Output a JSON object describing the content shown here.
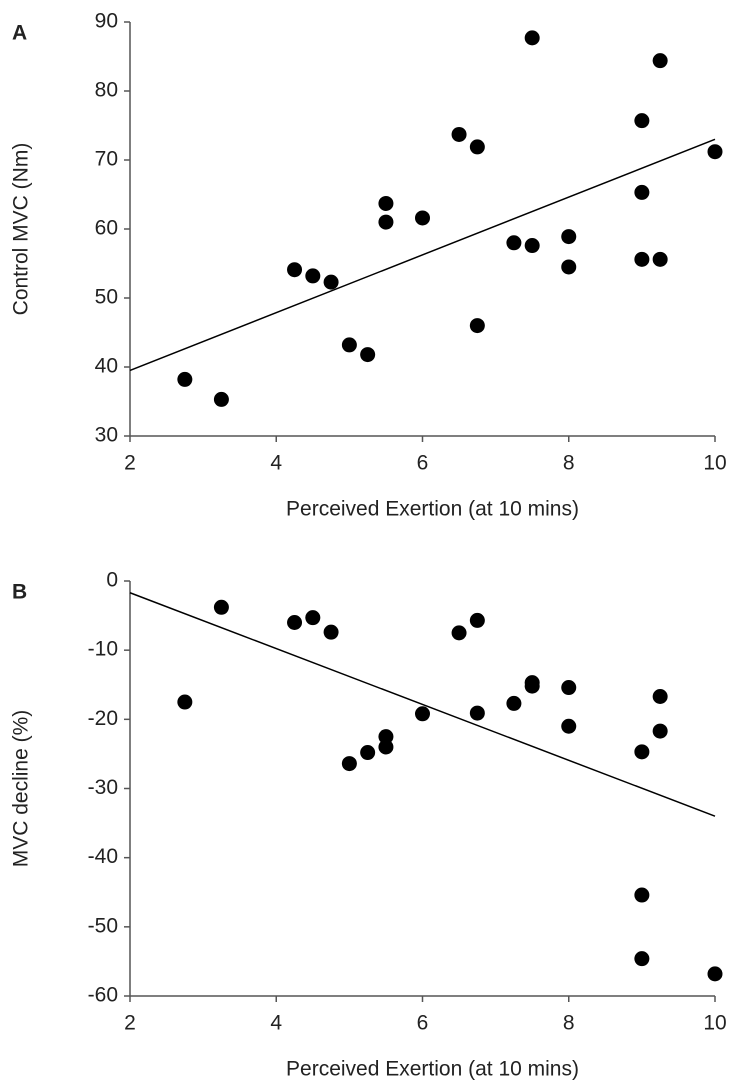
{
  "chart_data": [
    {
      "type": "scatter",
      "label": "A",
      "x_label": "Perceived Exertion (at 10 mins)",
      "y_label": "Control MVC (Nm)",
      "x": [
        2.75,
        3.25,
        4.25,
        4.5,
        4.75,
        5,
        5.25,
        5.5,
        5.5,
        6,
        6.5,
        6.75,
        6.75,
        7.25,
        7.5,
        7.5,
        8,
        8,
        9,
        9,
        9,
        9.25,
        9.25,
        10
      ],
      "values": [
        38.2,
        35.3,
        54.1,
        53.2,
        52.3,
        43.2,
        41.8,
        63.7,
        61,
        61.6,
        73.7,
        71.9,
        46,
        58,
        57.6,
        87.7,
        58.9,
        54.5,
        75.7,
        65.3,
        55.6,
        84.4,
        55.6,
        71.2
      ],
      "color": "#000000",
      "trendline": {
        "x": [
          2,
          10
        ],
        "y": [
          39.5,
          73
        ]
      },
      "xlim": [
        2,
        10
      ],
      "xticks": [
        2,
        4,
        6,
        8,
        10
      ],
      "ylim": [
        30,
        90
      ],
      "yticks": [
        30,
        40,
        50,
        60,
        70,
        80,
        90
      ]
    },
    {
      "type": "scatter",
      "label": "B",
      "x_label": "Perceived Exertion (at 10 mins)",
      "y_label": "MVC decline (%)",
      "x": [
        2.75,
        3.25,
        4.25,
        4.5,
        4.75,
        5,
        5.25,
        5.5,
        5.5,
        6,
        6.5,
        6.75,
        6.75,
        7.25,
        7.5,
        7.5,
        8,
        8,
        9,
        9,
        9,
        9.25,
        9.25,
        10
      ],
      "values": [
        -17.5,
        -3.8,
        -6,
        -5.3,
        -7.4,
        -26.4,
        -24.8,
        -22.5,
        -24,
        -19.2,
        -7.5,
        -5.7,
        -19.1,
        -17.7,
        -14.7,
        -15.2,
        -15.4,
        -21,
        -24.7,
        -45.4,
        -54.6,
        -16.7,
        -21.7,
        -56.8
      ],
      "color": "#000000",
      "trendline": {
        "x": [
          2,
          10
        ],
        "y": [
          -1.7,
          -34
        ]
      },
      "xlim": [
        2,
        10
      ],
      "xticks": [
        2,
        4,
        6,
        8,
        10
      ],
      "ylim": [
        -60,
        0
      ],
      "yticks": [
        -60,
        -50,
        -40,
        -30,
        -20,
        -10,
        0
      ]
    }
  ]
}
